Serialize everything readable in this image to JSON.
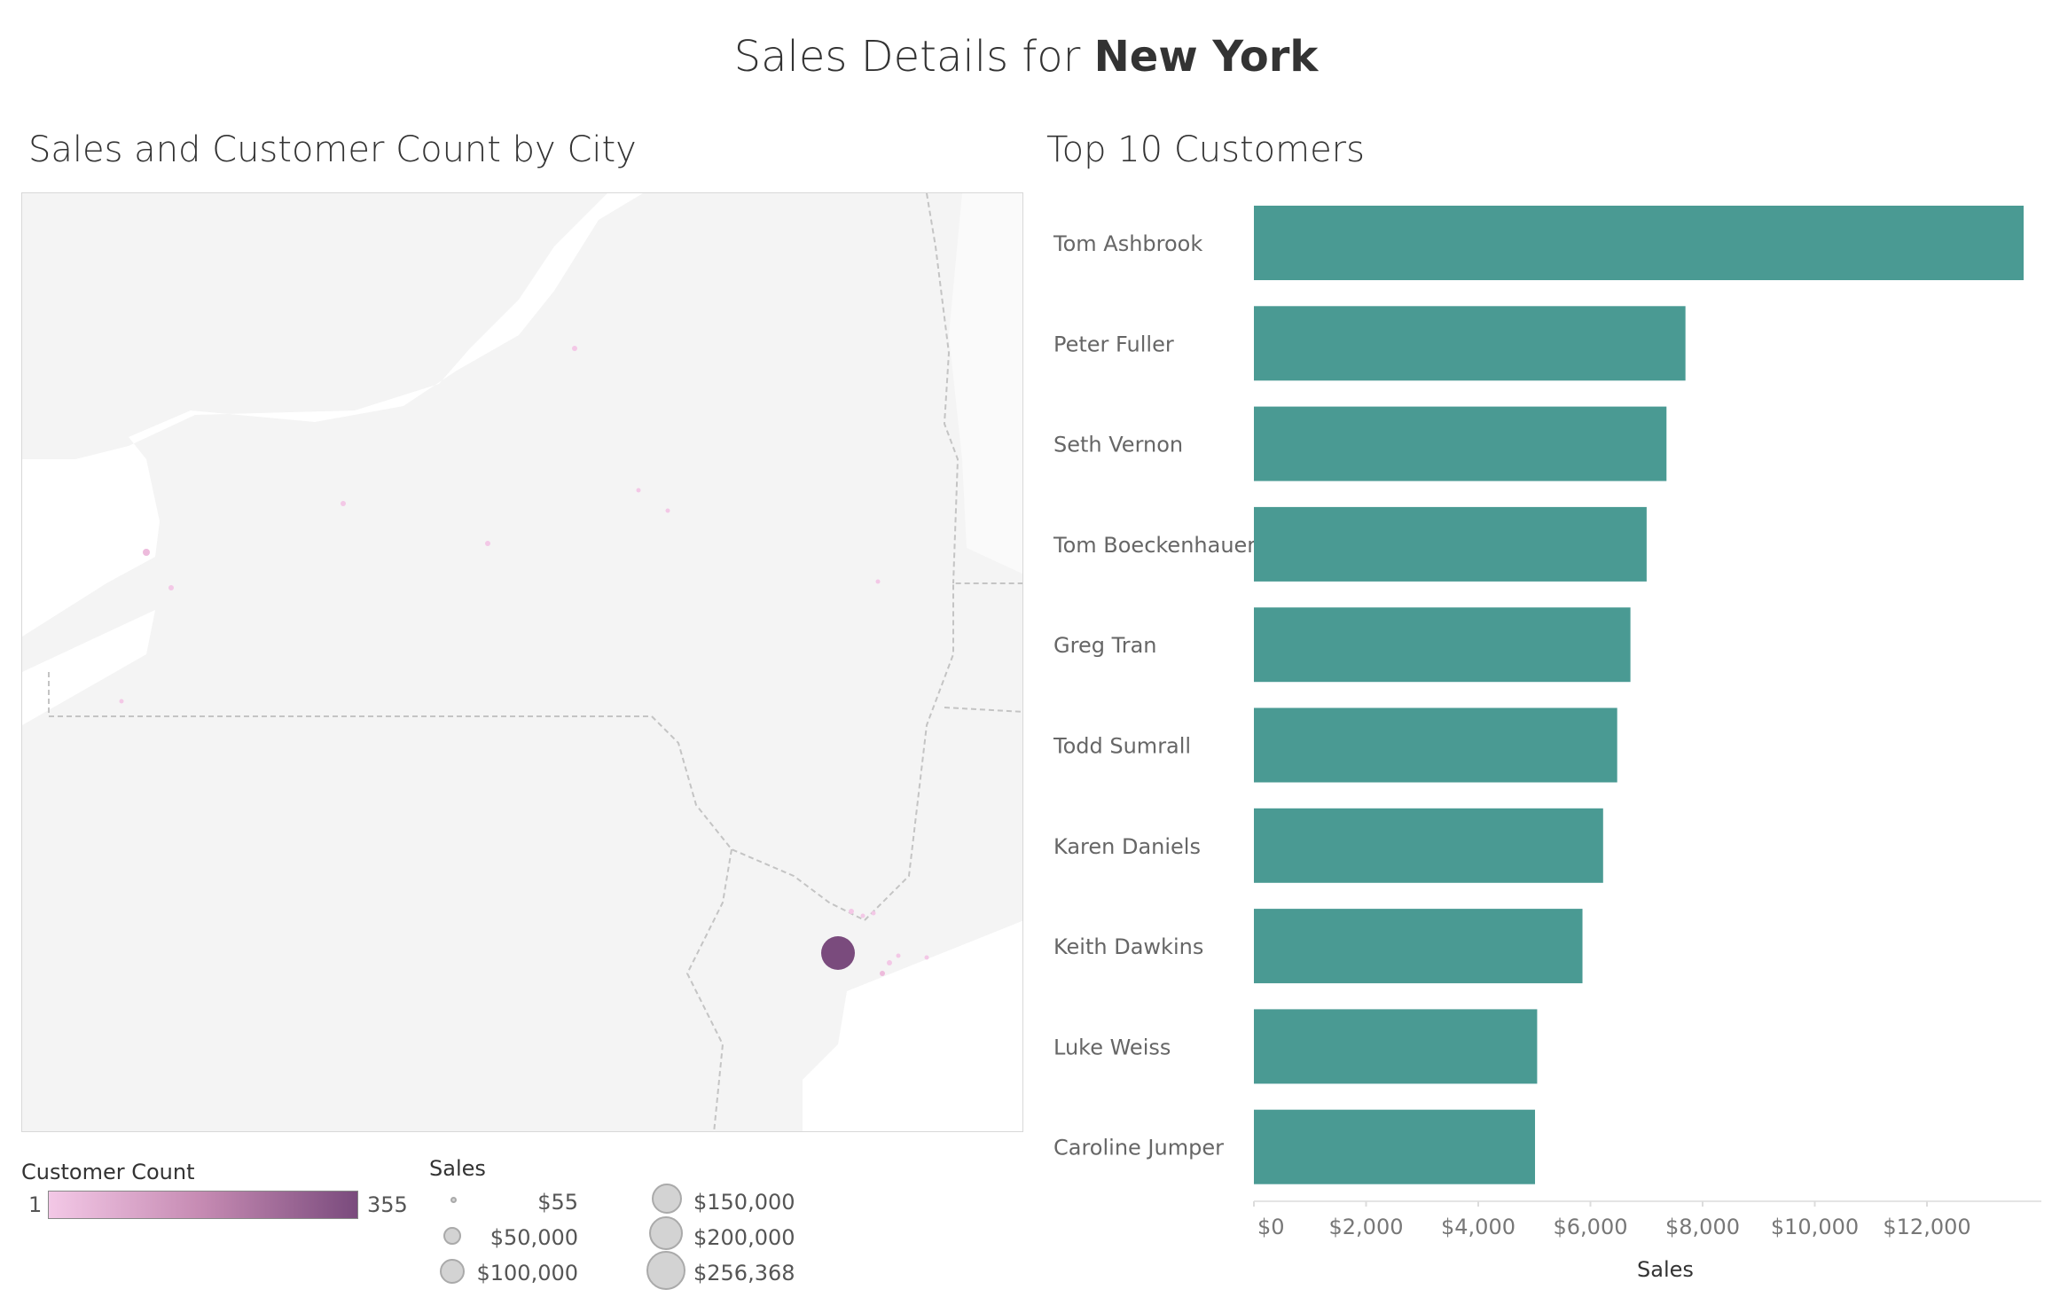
{
  "dashboard": {
    "title_prefix": "Sales Details for ",
    "title_state": "New York"
  },
  "map_panel": {
    "title": "Sales and Customer Count by City",
    "colors": {
      "water": "#ffffff",
      "land": "#f4f4f4",
      "border": "#c4c4c4",
      "point_low": "#f3c8e6",
      "point_high": "#7a4b7d"
    }
  },
  "legend": {
    "customer_count": {
      "title": "Customer Count",
      "min": "1",
      "max": "355"
    },
    "sales": {
      "title": "Sales",
      "items": [
        "$55",
        "$50,000",
        "$100,000",
        "$150,000",
        "$200,000",
        "$256,368"
      ]
    }
  },
  "chart_data": {
    "type": "bar",
    "orientation": "horizontal",
    "title": "Top 10 Customers",
    "categories": [
      "Tom Ashbrook",
      "Peter Fuller",
      "Seth Vernon",
      "Tom Boeckenhauer",
      "Greg Tran",
      "Todd Sumrall",
      "Karen Daniels",
      "Keith Dawkins",
      "Luke Weiss",
      "Caroline Jumper"
    ],
    "values": [
      13723,
      7694,
      7356,
      7002,
      6713,
      6477,
      6226,
      5858,
      5050,
      5012
    ],
    "xlabel": "Sales",
    "xticks": [
      "$0",
      "$2,000",
      "$4,000",
      "$6,000",
      "$8,000",
      "$10,000",
      "$12,000"
    ],
    "xlim": [
      0,
      13723
    ],
    "grid": false,
    "color": "#4a9a93"
  }
}
